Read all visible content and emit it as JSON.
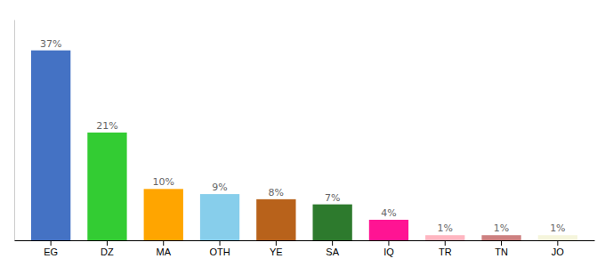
{
  "chart_data": {
    "type": "bar",
    "categories": [
      "EG",
      "DZ",
      "MA",
      "OTH",
      "YE",
      "SA",
      "IQ",
      "TR",
      "TN",
      "JO"
    ],
    "values": [
      37,
      21,
      10,
      9,
      8,
      7,
      4,
      1,
      1,
      1
    ],
    "value_labels": [
      "37%",
      "21%",
      "10%",
      "9%",
      "8%",
      "7%",
      "4%",
      "1%",
      "1%",
      "1%"
    ],
    "colors": [
      "#4472C4",
      "#33CC33",
      "#FFA500",
      "#87CEEB",
      "#B8621B",
      "#2D7A2D",
      "#FF1493",
      "#FFB6C1",
      "#CD8080",
      "#F5F5DC"
    ],
    "ylim": [
      0,
      43
    ],
    "data_labels": true,
    "tick_labels": "x"
  }
}
